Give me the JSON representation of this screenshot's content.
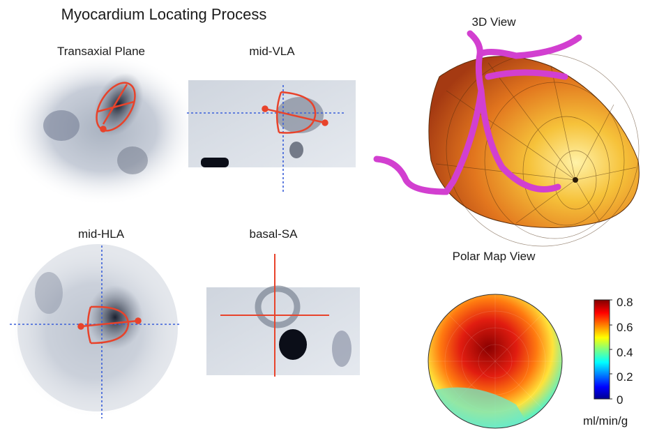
{
  "title": "Myocardium Locating Process",
  "panels": {
    "transaxial": "Transaxial Plane",
    "vla": "mid-VLA",
    "hla": "mid-HLA",
    "sa": "basal-SA",
    "view3d": "3D View",
    "polar": "Polar Map View"
  },
  "colorbar": {
    "ticks": [
      "0.8",
      "0.6",
      "0.4",
      "0.2",
      "0"
    ],
    "unit": "ml/min/g",
    "range": [
      0,
      0.8
    ],
    "colormap": "jet"
  },
  "colors": {
    "overlay_red": "#e8432b",
    "crosshair_blue": "#3a5fd9",
    "vessel_magenta": "#d23fd0"
  }
}
